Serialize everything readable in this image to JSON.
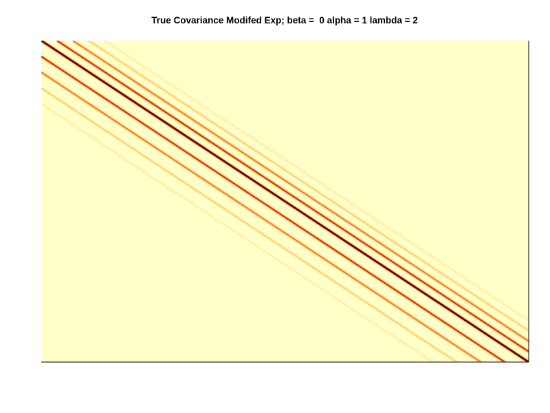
{
  "chart_data": {
    "type": "heatmap",
    "title": "True Covariance Modifed Exp; beta =  0 alpha = 1 lambda = 2",
    "xlabel": "",
    "ylabel": "",
    "grid": false,
    "legend": "none",
    "colormap": [
      "#ffffc8",
      "#ffe08a",
      "#ffa040",
      "#ff4d00",
      "#c01000",
      "#600000"
    ],
    "background_color": "#ffffc8",
    "diagonals": [
      {
        "offset": 0,
        "value": 1.0
      },
      {
        "offset": -1,
        "value": 0.72
      },
      {
        "offset": 1,
        "value": 0.72
      },
      {
        "offset": -2,
        "value": 0.5
      },
      {
        "offset": 2,
        "value": 0.5
      },
      {
        "offset": -3,
        "value": 0.25
      },
      {
        "offset": 3,
        "value": 0.25
      },
      {
        "offset": -4,
        "value": 0.1
      },
      {
        "offset": 4,
        "value": 0.1
      }
    ]
  }
}
